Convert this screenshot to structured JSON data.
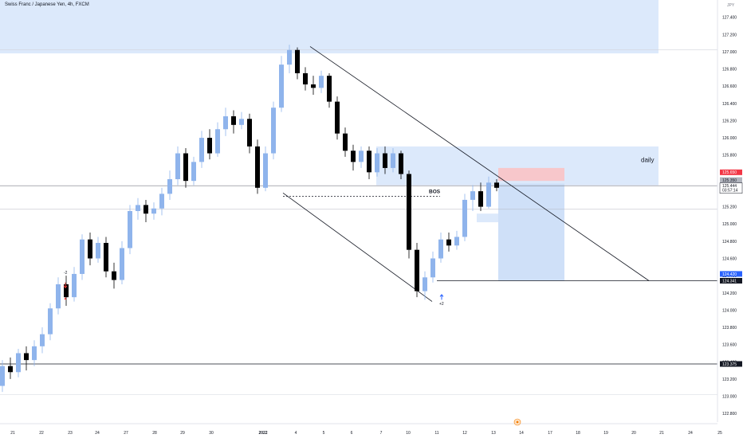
{
  "header": {
    "title": "Swiss Franc / Japanese Yen, 4h, FXCM",
    "currency": "JPY"
  },
  "colors": {
    "bull": "#8fb4ec",
    "bear": "#000000",
    "zone": "#dce9fb",
    "target": "#cfe0f8",
    "stop": "#f7c7cb",
    "line": "#131722",
    "arrow_up": "#2962ff",
    "arrow_down": "#e53935"
  },
  "chart_data": {
    "type": "candlestick",
    "ylim": [
      122.7,
      127.6
    ],
    "y_ticks": [
      "127.400",
      "127.200",
      "127.000",
      "126.800",
      "126.600",
      "126.400",
      "126.200",
      "126.000",
      "125.800",
      "125.600",
      "125.400",
      "125.200",
      "125.000",
      "124.800",
      "124.600",
      "124.400",
      "124.200",
      "124.000",
      "123.800",
      "123.600",
      "123.400",
      "123.200",
      "123.000",
      "122.800"
    ],
    "x_ticks": [
      "21",
      "22",
      "23",
      "24",
      "27",
      "28",
      "29",
      "30",
      "2022",
      "4",
      "5",
      "6",
      "7",
      "10",
      "11",
      "12",
      "13",
      "14",
      "17",
      "18",
      "19",
      "20",
      "21",
      "24",
      "25"
    ],
    "price_tags": [
      {
        "value": 125.6,
        "label": "125.650",
        "bg": "#f23645",
        "fg": "#ffffff"
      },
      {
        "value": 125.51,
        "label": "125.350",
        "bg": "#b2b5be",
        "fg": "#131722"
      },
      {
        "value": 125.444,
        "label": "125.444",
        "bg": "#ffffff",
        "fg": "#131722",
        "sub": "03:57:14"
      },
      {
        "value": 124.42,
        "label": "124.420",
        "bg": "#2962ff",
        "fg": "#ffffff"
      },
      {
        "value": 124.341,
        "label": "124.341",
        "bg": "#131722",
        "fg": "#ffffff"
      },
      {
        "value": 123.375,
        "label": "123.375",
        "bg": "#131722",
        "fg": "#ffffff"
      }
    ],
    "horizontal_lines": [
      127.02,
      125.444,
      125.17,
      124.341,
      123.375,
      123.02
    ],
    "annotations": {
      "daily": "daily",
      "bos": "BOS",
      "marker_down": "-2",
      "marker_up": "+2"
    },
    "candles": [
      [
        0,
        123.12,
        123.35,
        123.05,
        123.42
      ],
      [
        1,
        123.35,
        123.28,
        123.2,
        123.45
      ],
      [
        2,
        123.28,
        123.5,
        123.22,
        123.55
      ],
      [
        3,
        123.5,
        123.42,
        123.3,
        123.58
      ],
      [
        4,
        123.42,
        123.58,
        123.35,
        123.65
      ],
      [
        5,
        123.58,
        123.72,
        123.5,
        123.8
      ],
      [
        6,
        123.72,
        124.02,
        123.65,
        124.08
      ],
      [
        7,
        124.02,
        124.3,
        123.95,
        124.38
      ],
      [
        8,
        124.3,
        124.15,
        124.05,
        124.4
      ],
      [
        9,
        124.15,
        124.42,
        124.1,
        124.5
      ],
      [
        10,
        124.42,
        124.82,
        124.35,
        124.88
      ],
      [
        11,
        124.82,
        124.6,
        124.52,
        124.9
      ],
      [
        12,
        124.6,
        124.78,
        124.55,
        124.85
      ],
      [
        13,
        124.78,
        124.45,
        124.38,
        124.85
      ],
      [
        14,
        124.45,
        124.35,
        124.25,
        124.55
      ],
      [
        15,
        124.35,
        124.72,
        124.3,
        124.8
      ],
      [
        16,
        124.72,
        125.15,
        124.65,
        125.22
      ],
      [
        17,
        125.15,
        125.22,
        125.05,
        125.3
      ],
      [
        18,
        125.22,
        125.12,
        125.02,
        125.28
      ],
      [
        19,
        125.12,
        125.18,
        125.05,
        125.25
      ],
      [
        20,
        125.18,
        125.35,
        125.1,
        125.42
      ],
      [
        21,
        125.35,
        125.52,
        125.28,
        125.62
      ],
      [
        22,
        125.52,
        125.82,
        125.45,
        125.9
      ],
      [
        23,
        125.82,
        125.5,
        125.42,
        125.88
      ],
      [
        24,
        125.5,
        125.72,
        125.45,
        125.78
      ],
      [
        25,
        125.72,
        126.0,
        125.65,
        126.08
      ],
      [
        26,
        126.0,
        125.82,
        125.75,
        126.1
      ],
      [
        27,
        125.82,
        126.1,
        125.78,
        126.18
      ],
      [
        28,
        126.1,
        126.25,
        126.02,
        126.35
      ],
      [
        29,
        126.25,
        126.15,
        126.05,
        126.32
      ],
      [
        30,
        126.15,
        126.22,
        126.1,
        126.3
      ],
      [
        31,
        126.22,
        125.9,
        125.82,
        126.28
      ],
      [
        32,
        125.9,
        125.42,
        125.35,
        125.98
      ],
      [
        33,
        125.42,
        125.82,
        125.38,
        125.9
      ],
      [
        34,
        125.82,
        126.35,
        125.75,
        126.42
      ],
      [
        35,
        126.35,
        126.85,
        126.3,
        126.95
      ],
      [
        36,
        126.85,
        127.02,
        126.75,
        127.08
      ],
      [
        37,
        127.02,
        126.75,
        126.68,
        127.05
      ],
      [
        38,
        126.75,
        126.62,
        126.55,
        126.82
      ],
      [
        39,
        126.62,
        126.58,
        126.5,
        126.72
      ],
      [
        40,
        126.58,
        126.72,
        126.52,
        126.78
      ],
      [
        41,
        126.72,
        126.42,
        126.35,
        126.75
      ],
      [
        42,
        126.42,
        126.05,
        125.98,
        126.48
      ],
      [
        43,
        126.05,
        125.85,
        125.78,
        126.12
      ],
      [
        44,
        125.85,
        125.72,
        125.62,
        125.92
      ],
      [
        45,
        125.72,
        125.85,
        125.65,
        125.9
      ],
      [
        46,
        125.85,
        125.6,
        125.52,
        125.9
      ],
      [
        47,
        125.6,
        125.82,
        125.55,
        125.88
      ],
      [
        48,
        125.82,
        125.65,
        125.58,
        125.9
      ],
      [
        49,
        125.65,
        125.82,
        125.6,
        125.88
      ],
      [
        50,
        125.82,
        125.58,
        125.52,
        125.85
      ],
      [
        51,
        125.58,
        124.7,
        124.6,
        125.62
      ],
      [
        52,
        124.7,
        124.22,
        124.15,
        124.78
      ],
      [
        53,
        124.22,
        124.38,
        124.12,
        124.45
      ],
      [
        54,
        124.38,
        124.6,
        124.32,
        124.68
      ],
      [
        55,
        124.6,
        124.82,
        124.55,
        124.9
      ],
      [
        56,
        124.82,
        124.75,
        124.68,
        124.9
      ],
      [
        57,
        124.75,
        124.85,
        124.7,
        124.92
      ],
      [
        58,
        124.85,
        125.28,
        124.8,
        125.35
      ],
      [
        59,
        125.28,
        125.38,
        125.15,
        125.45
      ],
      [
        60,
        125.38,
        125.2,
        125.15,
        125.48
      ],
      [
        61,
        125.2,
        125.48,
        125.18,
        125.55
      ],
      [
        62,
        125.48,
        125.42,
        125.38,
        125.52
      ]
    ]
  }
}
